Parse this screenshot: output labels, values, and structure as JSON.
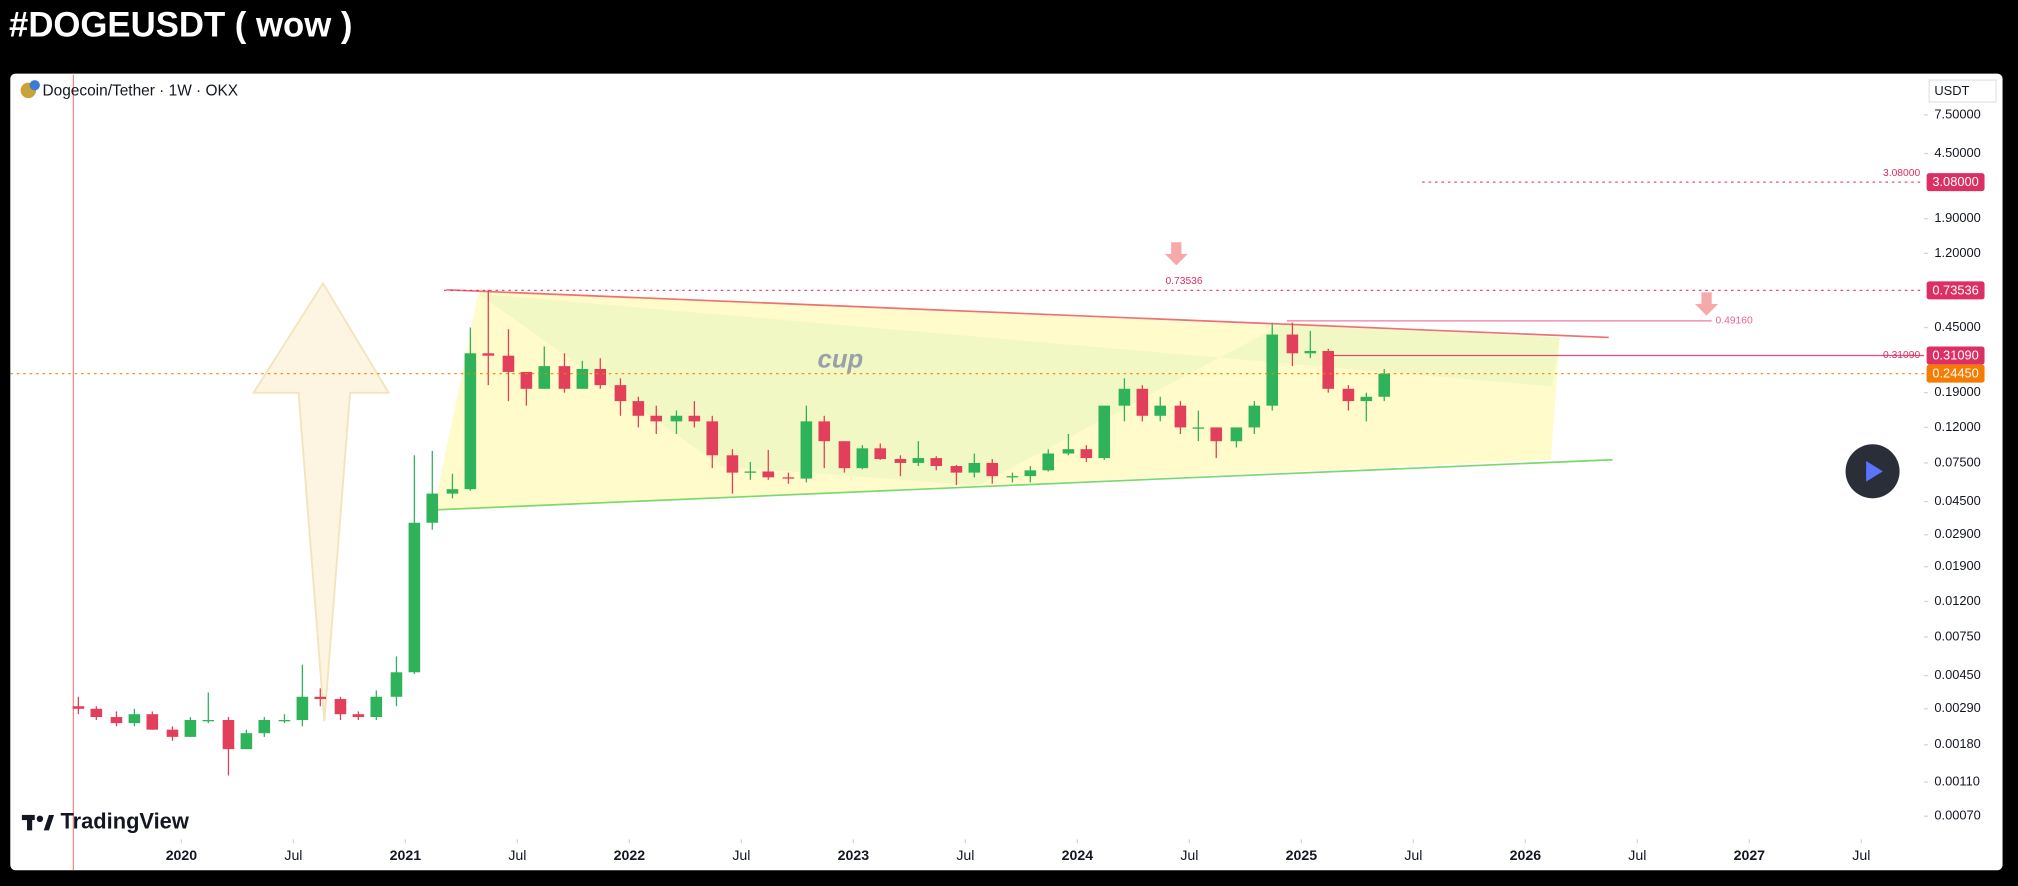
{
  "chart_data": {
    "type": "candlestick",
    "title": "#DOGEUSDT ( wow )",
    "symbol": "Dogecoin/Tether · 1W · OKX",
    "currency": "USDT",
    "annotation": "cup",
    "brand": "TradingView",
    "log_scale": true,
    "grid": false,
    "up_color": "#2fb35a",
    "down_color": "#e2405a",
    "xlim": [
      2019.236,
      2027.78
    ],
    "xticks": [
      2020,
      {
        "value": 2020.5,
        "label": "Jul"
      },
      2021,
      {
        "value": 2021.5,
        "label": "Jul"
      },
      2022,
      {
        "value": 2022.5,
        "label": "Jul"
      },
      2023,
      {
        "value": 2023.5,
        "label": "Jul"
      },
      2024,
      {
        "value": 2024.5,
        "label": "Jul"
      },
      2025,
      {
        "value": 2025.5,
        "label": "Jul"
      },
      2026,
      {
        "value": 2026.5,
        "label": "Jul"
      },
      2027,
      {
        "value": 2027.5,
        "label": "Jul"
      }
    ],
    "ylim": [
      0.000533,
      12.3
    ],
    "yticks": [
      {
        "value": 7.5,
        "label": "7.50000"
      },
      {
        "value": 4.5,
        "label": "4.50000"
      },
      {
        "value": 1.9,
        "label": "1.90000"
      },
      {
        "value": 1.2,
        "label": "1.20000"
      },
      {
        "value": 0.45,
        "label": "0.45000"
      },
      {
        "value": 0.19,
        "label": "0.19000"
      },
      {
        "value": 0.12,
        "label": "0.12000"
      },
      {
        "value": 0.075,
        "label": "0.07500"
      },
      {
        "value": 0.045,
        "label": "0.04500"
      },
      {
        "value": 0.029,
        "label": "0.02900"
      },
      {
        "value": 0.019,
        "label": "0.01900"
      },
      {
        "value": 0.012,
        "label": "0.01200"
      },
      {
        "value": 0.0075,
        "label": "0.00750"
      },
      {
        "value": 0.0045,
        "label": "0.00450"
      },
      {
        "value": 0.0029,
        "label": "0.00290"
      },
      {
        "value": 0.0018,
        "label": "0.00180"
      },
      {
        "value": 0.0011,
        "label": "0.00110"
      },
      {
        "value": 0.0007,
        "label": "0.00070"
      }
    ],
    "price_lines": [
      {
        "value": 3.08,
        "label": "3.08000",
        "color": "#dc2f63"
      },
      {
        "value": 0.73536,
        "label": "0.73536",
        "color": "#dc2f63"
      },
      {
        "value": 0.4916,
        "label": "0.49160",
        "color": "#f06292"
      },
      {
        "value": 0.3109,
        "label": "0.31090",
        "color": "#dc2f63"
      },
      {
        "value": 0.2445,
        "label": "0.24450",
        "color": "#f57c00"
      }
    ],
    "x": [
      2019.54,
      2019.62,
      2019.71,
      2019.79,
      2019.87,
      2019.96,
      2020.04,
      2020.12,
      2020.21,
      2020.29,
      2020.37,
      2020.46,
      2020.54,
      2020.62,
      2020.71,
      2020.79,
      2020.87,
      2020.96,
      2021.04,
      2021.12,
      2021.21,
      2021.29,
      2021.37,
      2021.46,
      2021.54,
      2021.62,
      2021.71,
      2021.79,
      2021.87,
      2021.96,
      2022.04,
      2022.12,
      2022.21,
      2022.29,
      2022.37,
      2022.46,
      2022.54,
      2022.62,
      2022.71,
      2022.79,
      2022.87,
      2022.96,
      2023.04,
      2023.12,
      2023.21,
      2023.29,
      2023.37,
      2023.46,
      2023.54,
      2023.62,
      2023.71,
      2023.79,
      2023.87,
      2023.96,
      2024.04,
      2024.12,
      2024.21,
      2024.29,
      2024.37,
      2024.46,
      2024.54,
      2024.62,
      2024.71,
      2024.79,
      2024.87,
      2024.96,
      2025.04,
      2025.12,
      2025.21,
      2025.29,
      2025.37
    ],
    "open": [
      0.003,
      0.0029,
      0.0026,
      0.0024,
      0.0027,
      0.0022,
      0.002,
      0.0025,
      0.0025,
      0.0017,
      0.0021,
      0.0025,
      0.0025,
      0.0034,
      0.0033,
      0.0027,
      0.0026,
      0.0034,
      0.0047,
      0.034,
      0.05,
      0.053,
      0.32,
      0.31,
      0.25,
      0.2,
      0.27,
      0.2,
      0.26,
      0.21,
      0.17,
      0.14,
      0.13,
      0.14,
      0.13,
      0.083,
      0.066,
      0.067,
      0.062,
      0.061,
      0.13,
      0.1,
      0.07,
      0.091,
      0.079,
      0.075,
      0.08,
      0.072,
      0.066,
      0.075,
      0.063,
      0.063,
      0.068,
      0.085,
      0.09,
      0.08,
      0.16,
      0.2,
      0.14,
      0.16,
      0.12,
      0.12,
      0.1,
      0.12,
      0.16,
      0.41,
      0.32,
      0.33,
      0.2,
      0.17,
      0.18
    ],
    "high": [
      0.0034,
      0.003,
      0.0028,
      0.0029,
      0.0028,
      0.0023,
      0.0026,
      0.0036,
      0.0026,
      0.0022,
      0.0026,
      0.0027,
      0.0052,
      0.0038,
      0.0034,
      0.0028,
      0.0037,
      0.0058,
      0.083,
      0.088,
      0.065,
      0.45,
      0.74,
      0.44,
      0.25,
      0.35,
      0.32,
      0.29,
      0.3,
      0.23,
      0.18,
      0.16,
      0.15,
      0.17,
      0.14,
      0.09,
      0.076,
      0.089,
      0.066,
      0.16,
      0.14,
      0.1,
      0.095,
      0.097,
      0.083,
      0.1,
      0.082,
      0.073,
      0.085,
      0.079,
      0.066,
      0.072,
      0.09,
      0.11,
      0.095,
      0.16,
      0.23,
      0.21,
      0.18,
      0.17,
      0.15,
      0.12,
      0.12,
      0.17,
      0.48,
      0.48,
      0.43,
      0.34,
      0.21,
      0.19,
      0.26
    ],
    "low": [
      0.0027,
      0.0025,
      0.0023,
      0.0023,
      0.0022,
      0.0019,
      0.002,
      0.0024,
      0.0012,
      0.0017,
      0.002,
      0.0024,
      0.0023,
      0.003,
      0.0025,
      0.0025,
      0.0025,
      0.003,
      0.0046,
      0.031,
      0.047,
      0.052,
      0.21,
      0.17,
      0.16,
      0.2,
      0.19,
      0.2,
      0.2,
      0.14,
      0.12,
      0.11,
      0.11,
      0.12,
      0.07,
      0.05,
      0.06,
      0.06,
      0.057,
      0.058,
      0.07,
      0.066,
      0.069,
      0.078,
      0.063,
      0.072,
      0.068,
      0.056,
      0.062,
      0.057,
      0.058,
      0.058,
      0.067,
      0.083,
      0.076,
      0.078,
      0.13,
      0.13,
      0.13,
      0.11,
      0.1,
      0.08,
      0.092,
      0.11,
      0.15,
      0.27,
      0.3,
      0.19,
      0.15,
      0.13,
      0.17
    ],
    "close": [
      0.0029,
      0.0026,
      0.0024,
      0.0027,
      0.0022,
      0.002,
      0.0025,
      0.0025,
      0.0017,
      0.0021,
      0.0025,
      0.0025,
      0.0034,
      0.0033,
      0.0027,
      0.0026,
      0.0034,
      0.0047,
      0.034,
      0.05,
      0.053,
      0.32,
      0.31,
      0.25,
      0.2,
      0.27,
      0.2,
      0.26,
      0.21,
      0.17,
      0.14,
      0.13,
      0.14,
      0.13,
      0.083,
      0.066,
      0.067,
      0.062,
      0.061,
      0.13,
      0.1,
      0.07,
      0.091,
      0.079,
      0.075,
      0.08,
      0.072,
      0.066,
      0.075,
      0.063,
      0.063,
      0.068,
      0.085,
      0.09,
      0.08,
      0.16,
      0.2,
      0.14,
      0.16,
      0.12,
      0.12,
      0.1,
      0.12,
      0.16,
      0.41,
      0.32,
      0.33,
      0.2,
      0.17,
      0.18,
      0.2445
    ]
  }
}
